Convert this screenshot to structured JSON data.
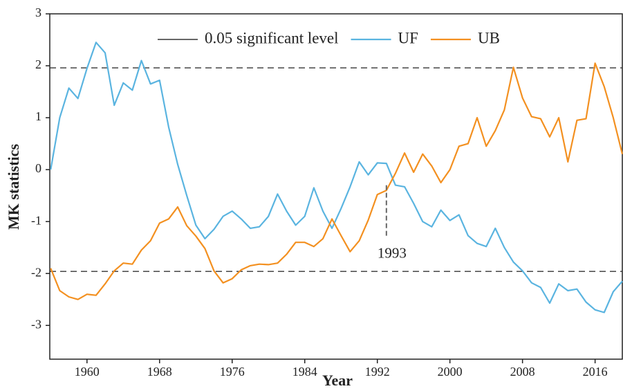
{
  "chart_data": {
    "type": "line",
    "xlabel": "Year",
    "ylabel": "MK statistics",
    "x": [
      1956,
      1957,
      1958,
      1959,
      1960,
      1961,
      1962,
      1963,
      1964,
      1965,
      1966,
      1967,
      1968,
      1969,
      1970,
      1971,
      1972,
      1973,
      1974,
      1975,
      1976,
      1977,
      1978,
      1979,
      1980,
      1981,
      1982,
      1983,
      1984,
      1985,
      1986,
      1987,
      1988,
      1989,
      1990,
      1991,
      1992,
      1993,
      1994,
      1995,
      1996,
      1997,
      1998,
      1999,
      2000,
      2001,
      2002,
      2003,
      2004,
      2005,
      2006,
      2007,
      2008,
      2009,
      2010,
      2011,
      2012,
      2013,
      2014,
      2015,
      2016,
      2017,
      2018,
      2019
    ],
    "series": [
      {
        "name": "UF",
        "color": "#5ab4e0",
        "values": [
          0,
          1.0,
          1.57,
          1.37,
          1.95,
          2.45,
          2.25,
          1.24,
          1.67,
          1.53,
          2.1,
          1.65,
          1.72,
          0.82,
          0.1,
          -0.5,
          -1.07,
          -1.33,
          -1.15,
          -0.9,
          -0.8,
          -0.95,
          -1.13,
          -1.1,
          -0.9,
          -0.47,
          -0.8,
          -1.07,
          -0.9,
          -0.35,
          -0.8,
          -1.13,
          -0.75,
          -0.33,
          0.15,
          -0.1,
          0.13,
          0.12,
          -0.3,
          -0.33,
          -0.65,
          -1.0,
          -1.1,
          -0.78,
          -0.98,
          -0.87,
          -1.27,
          -1.42,
          -1.48,
          -1.13,
          -1.5,
          -1.78,
          -1.95,
          -2.18,
          -2.27,
          -2.57,
          -2.2,
          -2.33,
          -2.3,
          -2.55,
          -2.7,
          -2.75,
          -2.35,
          -2.15
        ]
      },
      {
        "name": "UB",
        "color": "#f39020",
        "values": [
          -1.9,
          -2.33,
          -2.45,
          -2.5,
          -2.4,
          -2.42,
          -2.2,
          -1.95,
          -1.8,
          -1.82,
          -1.55,
          -1.37,
          -1.03,
          -0.95,
          -0.72,
          -1.08,
          -1.28,
          -1.52,
          -1.95,
          -2.18,
          -2.1,
          -1.93,
          -1.85,
          -1.82,
          -1.83,
          -1.8,
          -1.63,
          -1.4,
          -1.4,
          -1.48,
          -1.33,
          -0.95,
          -1.27,
          -1.58,
          -1.37,
          -0.97,
          -0.48,
          -0.4,
          -0.07,
          0.32,
          -0.05,
          0.3,
          0.07,
          -0.25,
          0.0,
          0.45,
          0.5,
          1.0,
          0.45,
          0.75,
          1.15,
          1.97,
          1.38,
          1.02,
          0.98,
          0.63,
          1.0,
          0.15,
          0.95,
          0.98,
          2.05,
          1.6,
          1.0,
          0.3
        ]
      }
    ],
    "reference_lines": {
      "name": "0.05 significant level",
      "color": "#333333",
      "values": [
        1.96,
        -1.96
      ]
    },
    "annotation": {
      "label": "1993",
      "x": 1993,
      "y": -0.3
    },
    "xlim": [
      1955.9,
      2019
    ],
    "xticks": [
      1960,
      1968,
      1976,
      1984,
      1992,
      2000,
      2008,
      2016
    ],
    "ylim": [
      -3.65,
      3
    ],
    "yticks": [
      -3,
      -2,
      -1,
      0,
      1,
      2,
      3
    ],
    "legend": "top"
  }
}
